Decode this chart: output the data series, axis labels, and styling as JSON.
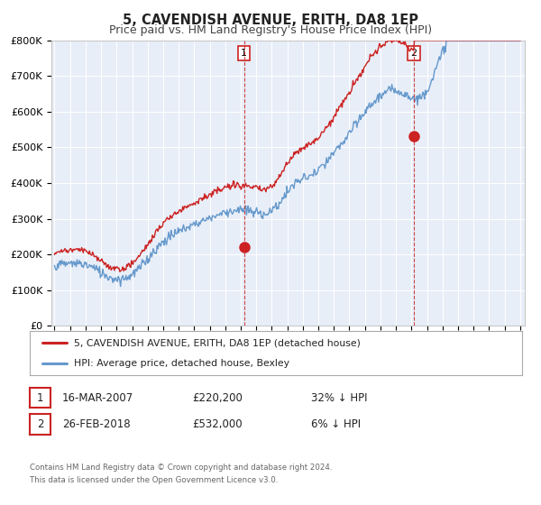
{
  "title": "5, CAVENDISH AVENUE, ERITH, DA8 1EP",
  "subtitle": "Price paid vs. HM Land Registry's House Price Index (HPI)",
  "ylim": [
    0,
    800000
  ],
  "yticks": [
    0,
    100000,
    200000,
    300000,
    400000,
    500000,
    600000,
    700000,
    800000
  ],
  "ytick_labels": [
    "£0",
    "£100K",
    "£200K",
    "£300K",
    "£400K",
    "£500K",
    "£600K",
    "£700K",
    "£800K"
  ],
  "xlim_start": 1994.8,
  "xlim_end": 2025.3,
  "background_color": "#e8eef8",
  "hpi_color": "#6699cc",
  "hpi_fill_color": "#c8d8ee",
  "price_color": "#cc2222",
  "marker_color": "#cc2222",
  "grid_color": "#ffffff",
  "vline_color": "#cc3333",
  "transaction1_x": 2007.21,
  "transaction1_y": 220200,
  "transaction2_x": 2018.16,
  "transaction2_y": 532000,
  "legend_entries": [
    "5, CAVENDISH AVENUE, ERITH, DA8 1EP (detached house)",
    "HPI: Average price, detached house, Bexley"
  ],
  "table_rows": [
    {
      "num": "1",
      "date": "16-MAR-2007",
      "price": "£220,200",
      "hpi": "32% ↓ HPI"
    },
    {
      "num": "2",
      "date": "26-FEB-2018",
      "price": "£532,000",
      "hpi": "6% ↓ HPI"
    }
  ],
  "footnote1": "Contains HM Land Registry data © Crown copyright and database right 2024.",
  "footnote2": "This data is licensed under the Open Government Licence v3.0.",
  "title_fontsize": 10.5,
  "subtitle_fontsize": 9
}
